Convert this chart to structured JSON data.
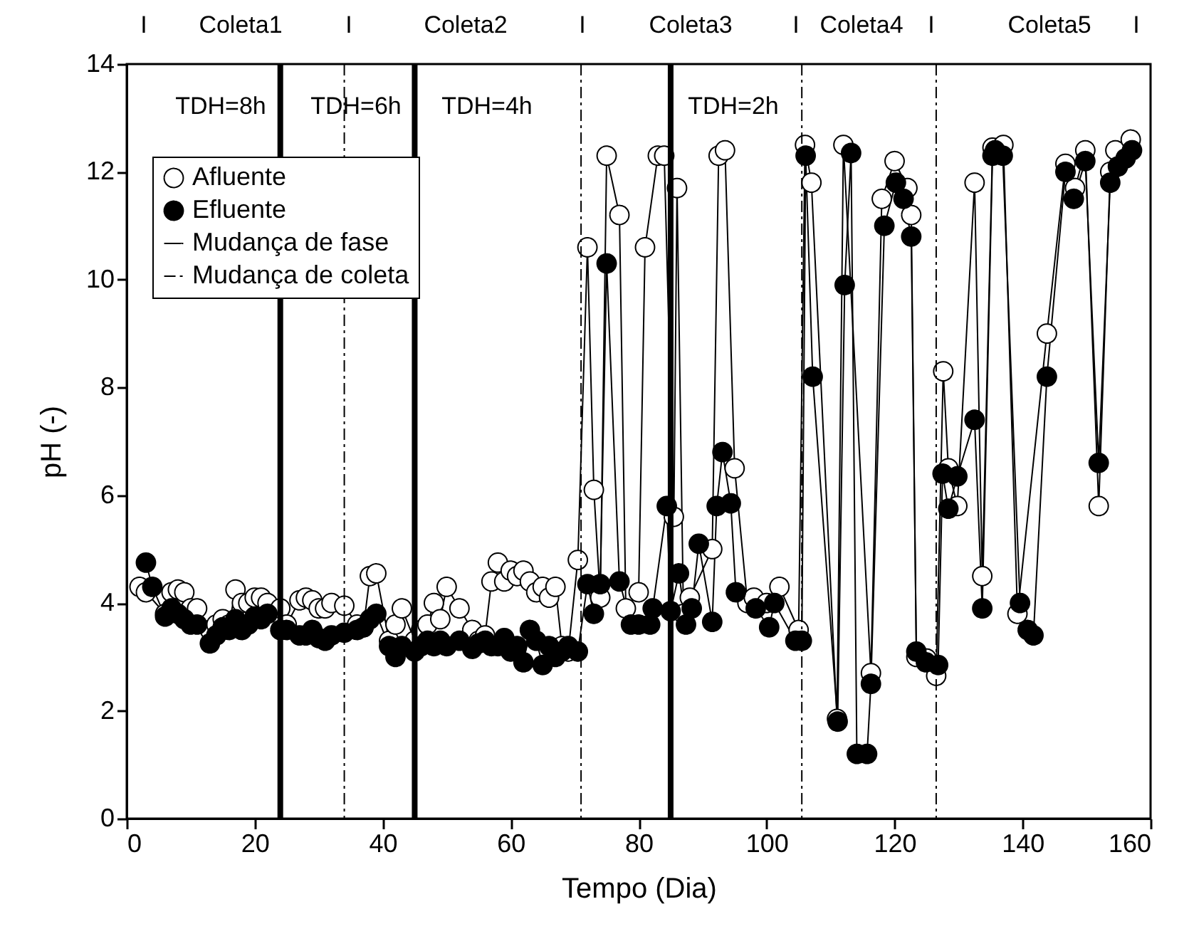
{
  "chart_data": {
    "type": "line",
    "xlabel": "Tempo (Dia)",
    "ylabel": "pH (-)",
    "xlim": [
      0,
      160
    ],
    "xticks": [
      0,
      20,
      40,
      60,
      80,
      100,
      120,
      140,
      160
    ],
    "ylim": [
      0,
      14
    ],
    "yticks": [
      0,
      2,
      4,
      6,
      8,
      10,
      12,
      14
    ],
    "grid": false,
    "legend": "top left",
    "marker": "circle",
    "line_style": "solid",
    "series": [
      {
        "name": "Afluente",
        "color": "#ffffff",
        "x": [
          2,
          3,
          6,
          7,
          8,
          9,
          10,
          11,
          13,
          14,
          15,
          16,
          17,
          18,
          19,
          20,
          21,
          22,
          24,
          25,
          27,
          28,
          29,
          30,
          31,
          32,
          34,
          36,
          37,
          38,
          39,
          41,
          42,
          43,
          45,
          46,
          47,
          48,
          49,
          50,
          52,
          54,
          55,
          56,
          57,
          58,
          59,
          60,
          61,
          62,
          63,
          64,
          65,
          66,
          67,
          68,
          69,
          70.5,
          72,
          73,
          74,
          75,
          77,
          78,
          80,
          81,
          83,
          84,
          85.5,
          86,
          87,
          88,
          91.5,
          92.5,
          93.5,
          95,
          97,
          98,
          100,
          102,
          105,
          106,
          107,
          111,
          112,
          116.3,
          118,
          120,
          122,
          122.6,
          123.4,
          125,
          126.5,
          127.6,
          128.4,
          129.8,
          132.5,
          133.7,
          135.3,
          137,
          139.2,
          143.8,
          146.7,
          148.2,
          149.8,
          151.9,
          153.7,
          154.5,
          156.9
        ],
        "values": [
          4.3,
          4.2,
          3.8,
          4.2,
          4.25,
          4.2,
          3.9,
          3.9,
          3.5,
          3.6,
          3.7,
          3.6,
          4.25,
          4.0,
          4.0,
          4.1,
          4.1,
          4.0,
          3.9,
          3.6,
          4.05,
          4.1,
          4.05,
          3.9,
          3.9,
          4.0,
          3.95,
          3.6,
          3.55,
          4.5,
          4.55,
          3.3,
          3.6,
          3.9,
          3.3,
          3.5,
          3.6,
          4.0,
          3.7,
          4.3,
          3.9,
          3.5,
          3.3,
          3.4,
          4.4,
          4.75,
          4.4,
          4.6,
          4.5,
          4.6,
          4.4,
          4.2,
          4.3,
          4.1,
          4.3,
          3.2,
          3.1,
          4.8,
          10.6,
          6.1,
          4.1,
          12.3,
          11.2,
          3.9,
          4.2,
          10.6,
          12.3,
          12.3,
          5.6,
          11.7,
          3.8,
          4.1,
          5.0,
          12.3,
          12.4,
          6.5,
          4.0,
          4.1,
          4.0,
          4.3,
          3.5,
          12.5,
          11.8,
          1.85,
          12.5,
          2.7,
          11.5,
          12.2,
          11.7,
          11.2,
          3.0,
          2.97,
          2.65,
          8.3,
          6.5,
          5.8,
          11.8,
          4.5,
          12.45,
          12.5,
          3.8,
          9.0,
          12.15,
          11.7,
          12.4,
          5.8,
          12.0,
          12.4,
          12.6
        ]
      },
      {
        "name": "Efluente",
        "color": "#000000",
        "x": [
          3,
          4,
          6,
          7,
          8,
          9,
          10,
          11,
          13,
          14,
          15,
          16,
          17,
          18,
          19,
          20,
          21,
          22,
          24,
          25,
          27,
          28,
          29,
          30,
          31,
          32,
          34,
          36,
          37,
          38,
          39,
          41,
          42,
          43,
          45,
          46,
          47,
          48,
          49,
          50,
          52,
          54,
          55,
          56,
          57,
          58,
          59,
          60,
          61,
          62,
          63,
          64,
          65,
          66,
          67,
          68,
          69,
          70.5,
          72,
          73,
          74,
          75,
          77,
          78.8,
          80,
          81.8,
          82.2,
          84.4,
          85,
          86.3,
          87.4,
          88.3,
          89.4,
          91.5,
          92.2,
          93.1,
          94.4,
          95.2,
          98.3,
          100.4,
          101.2,
          104.5,
          105.5,
          106.1,
          107.2,
          111.1,
          112.2,
          113.2,
          114.1,
          115.7,
          116.3,
          118.4,
          120.2,
          121.4,
          122.6,
          123.4,
          124.9,
          126.8,
          127.5,
          128.4,
          129.8,
          132.5,
          133.7,
          135.3,
          135.7,
          136.9,
          139.6,
          140.8,
          141.7,
          143.8,
          146.7,
          148,
          149.8,
          151.9,
          153.7,
          154.9,
          156.1,
          157.1
        ],
        "values": [
          4.75,
          4.3,
          3.75,
          3.9,
          3.8,
          3.7,
          3.6,
          3.6,
          3.25,
          3.4,
          3.55,
          3.5,
          3.7,
          3.5,
          3.6,
          3.75,
          3.7,
          3.8,
          3.5,
          3.5,
          3.4,
          3.4,
          3.5,
          3.35,
          3.3,
          3.4,
          3.45,
          3.5,
          3.55,
          3.7,
          3.8,
          3.2,
          3.0,
          3.2,
          3.1,
          3.2,
          3.3,
          3.2,
          3.3,
          3.2,
          3.3,
          3.15,
          3.25,
          3.3,
          3.2,
          3.2,
          3.35,
          3.1,
          3.2,
          2.9,
          3.5,
          3.3,
          2.85,
          3.2,
          3.0,
          3.1,
          3.2,
          3.1,
          4.35,
          3.8,
          4.35,
          10.3,
          4.4,
          3.6,
          3.6,
          3.6,
          3.9,
          5.8,
          3.85,
          4.55,
          3.6,
          3.9,
          5.1,
          3.65,
          5.8,
          6.8,
          5.85,
          4.2,
          3.9,
          3.55,
          4.0,
          3.3,
          3.3,
          12.3,
          8.2,
          1.8,
          9.9,
          12.35,
          1.2,
          1.2,
          2.5,
          11.0,
          11.8,
          11.5,
          10.8,
          3.1,
          2.9,
          2.85,
          6.4,
          5.75,
          6.35,
          7.4,
          3.9,
          12.3,
          12.4,
          12.3,
          4.0,
          3.5,
          3.4,
          8.2,
          12.0,
          11.5,
          12.2,
          6.6,
          11.8,
          12.1,
          12.25,
          12.4
        ]
      }
    ],
    "ref_lines": [
      {
        "axis": "x",
        "value": 24,
        "label": "Mudança de fase",
        "color": "#000000",
        "line_style": "solid"
      },
      {
        "axis": "x",
        "value": 45,
        "color": "#000000",
        "line_style": "solid"
      },
      {
        "axis": "x",
        "value": 85,
        "color": "#000000",
        "line_style": "solid"
      },
      {
        "axis": "x",
        "value": 34,
        "label": "Mudança de coleta",
        "color": "#000000",
        "line_style": "dashed"
      },
      {
        "axis": "x",
        "value": 71,
        "color": "#000000",
        "line_style": "dashed"
      },
      {
        "axis": "x",
        "value": 105.5,
        "color": "#000000",
        "line_style": "dashed"
      },
      {
        "axis": "x",
        "value": 126.5,
        "color": "#000000",
        "line_style": "dashed"
      }
    ],
    "annotations": [
      "I",
      "Coleta1",
      "I",
      "Coleta2",
      "I",
      "Coleta3",
      "I",
      "Coleta4",
      "I",
      "Coleta5",
      "I",
      "TDH=8h",
      "TDH=6h",
      "TDH=4h",
      "TDH=2h"
    ]
  }
}
